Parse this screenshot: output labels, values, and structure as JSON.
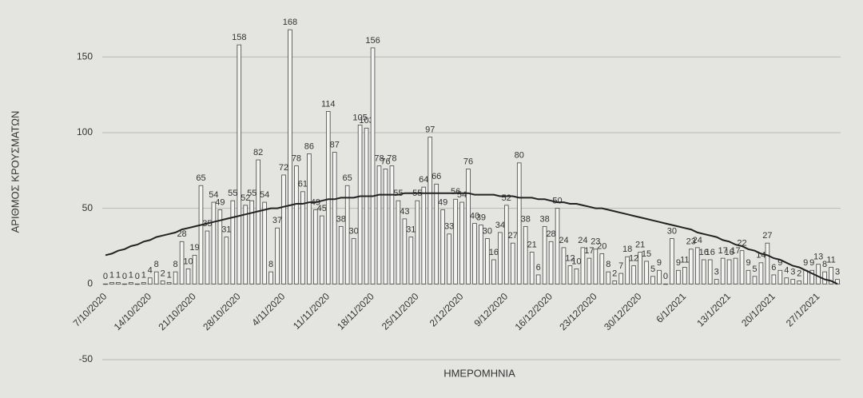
{
  "chart_data": {
    "type": "bar",
    "y_label": "ΑΡΙΘΜΟΣ ΚΡΟΥΣΜΑΤΩΝ",
    "x_label": "ΗΜΕΡΟΜΗΝΙΑ",
    "categories": [
      "7/10/2020",
      null,
      null,
      null,
      null,
      null,
      null,
      "14/10/2020",
      null,
      null,
      null,
      null,
      null,
      null,
      "21/10/2020",
      null,
      null,
      null,
      null,
      null,
      null,
      "28/10/2020",
      null,
      null,
      null,
      null,
      null,
      null,
      "4/11/2020",
      null,
      null,
      null,
      null,
      null,
      null,
      "11/11/2020",
      null,
      null,
      null,
      null,
      null,
      null,
      "18/11/2020",
      null,
      null,
      null,
      null,
      null,
      null,
      "25/11/2020",
      null,
      null,
      null,
      null,
      null,
      null,
      "2/12/2020",
      null,
      null,
      null,
      null,
      null,
      null,
      "9/12/2020",
      null,
      null,
      null,
      null,
      null,
      null,
      "16/12/2020",
      null,
      null,
      null,
      null,
      null,
      null,
      "23/12/2020",
      null,
      null,
      null,
      null,
      null,
      null,
      "30/12/2020",
      null,
      null,
      null,
      null,
      null,
      null,
      "6/1/2021",
      null,
      null,
      null,
      null,
      null,
      null,
      "13/1/2021",
      null,
      null,
      null,
      null,
      null,
      null,
      "20/1/2021",
      null,
      null,
      null,
      null,
      null,
      null,
      "27/1/2021",
      null,
      null,
      null
    ],
    "values": [
      0,
      1,
      1,
      0,
      1,
      0,
      1,
      4,
      8,
      2,
      1,
      8,
      28,
      10,
      19,
      65,
      35,
      54,
      49,
      31,
      55,
      158,
      52,
      55,
      82,
      54,
      8,
      37,
      72,
      168,
      78,
      61,
      86,
      49,
      45,
      114,
      87,
      38,
      65,
      30,
      105,
      103,
      156,
      78,
      76,
      78,
      55,
      43,
      31,
      55,
      64,
      97,
      66,
      49,
      33,
      56,
      54,
      76,
      40,
      39,
      30,
      16,
      34,
      52,
      27,
      80,
      38,
      21,
      6,
      38,
      28,
      50,
      24,
      12,
      10,
      24,
      17,
      23,
      20,
      8,
      2,
      7,
      18,
      12,
      21,
      15,
      5,
      9,
      0,
      30,
      9,
      11,
      23,
      24,
      16,
      16,
      3,
      17,
      16,
      17,
      22,
      9,
      5,
      14,
      27,
      6,
      9,
      4,
      3,
      2,
      9,
      9,
      13,
      8,
      11,
      3
    ],
    "trendline": [
      19,
      20,
      22,
      23,
      25,
      26,
      28,
      29,
      31,
      32,
      33,
      34,
      36,
      37,
      38,
      39,
      40,
      41,
      42,
      43,
      44,
      45,
      46,
      47,
      48,
      49,
      50,
      50,
      51,
      52,
      53,
      53,
      54,
      54,
      55,
      56,
      56,
      57,
      57,
      57,
      58,
      58,
      58,
      59,
      59,
      59,
      59,
      60,
      60,
      60,
      60,
      60,
      60,
      60,
      60,
      60,
      60,
      60,
      59,
      59,
      59,
      59,
      58,
      58,
      58,
      57,
      57,
      57,
      56,
      56,
      55,
      54,
      54,
      53,
      53,
      52,
      51,
      50,
      50,
      49,
      48,
      47,
      46,
      45,
      44,
      43,
      42,
      41,
      40,
      39,
      38,
      37,
      36,
      34,
      33,
      32,
      31,
      29,
      28,
      26,
      25,
      23,
      22,
      20,
      19,
      17,
      16,
      14,
      12,
      11,
      9,
      7,
      5,
      3,
      2,
      0
    ],
    "bar_color": "#f4f4f2",
    "line_color": "#222222",
    "ylim": [
      -50,
      185
    ],
    "yticks": [
      -50,
      0,
      50,
      100,
      150
    ],
    "grid": true
  }
}
